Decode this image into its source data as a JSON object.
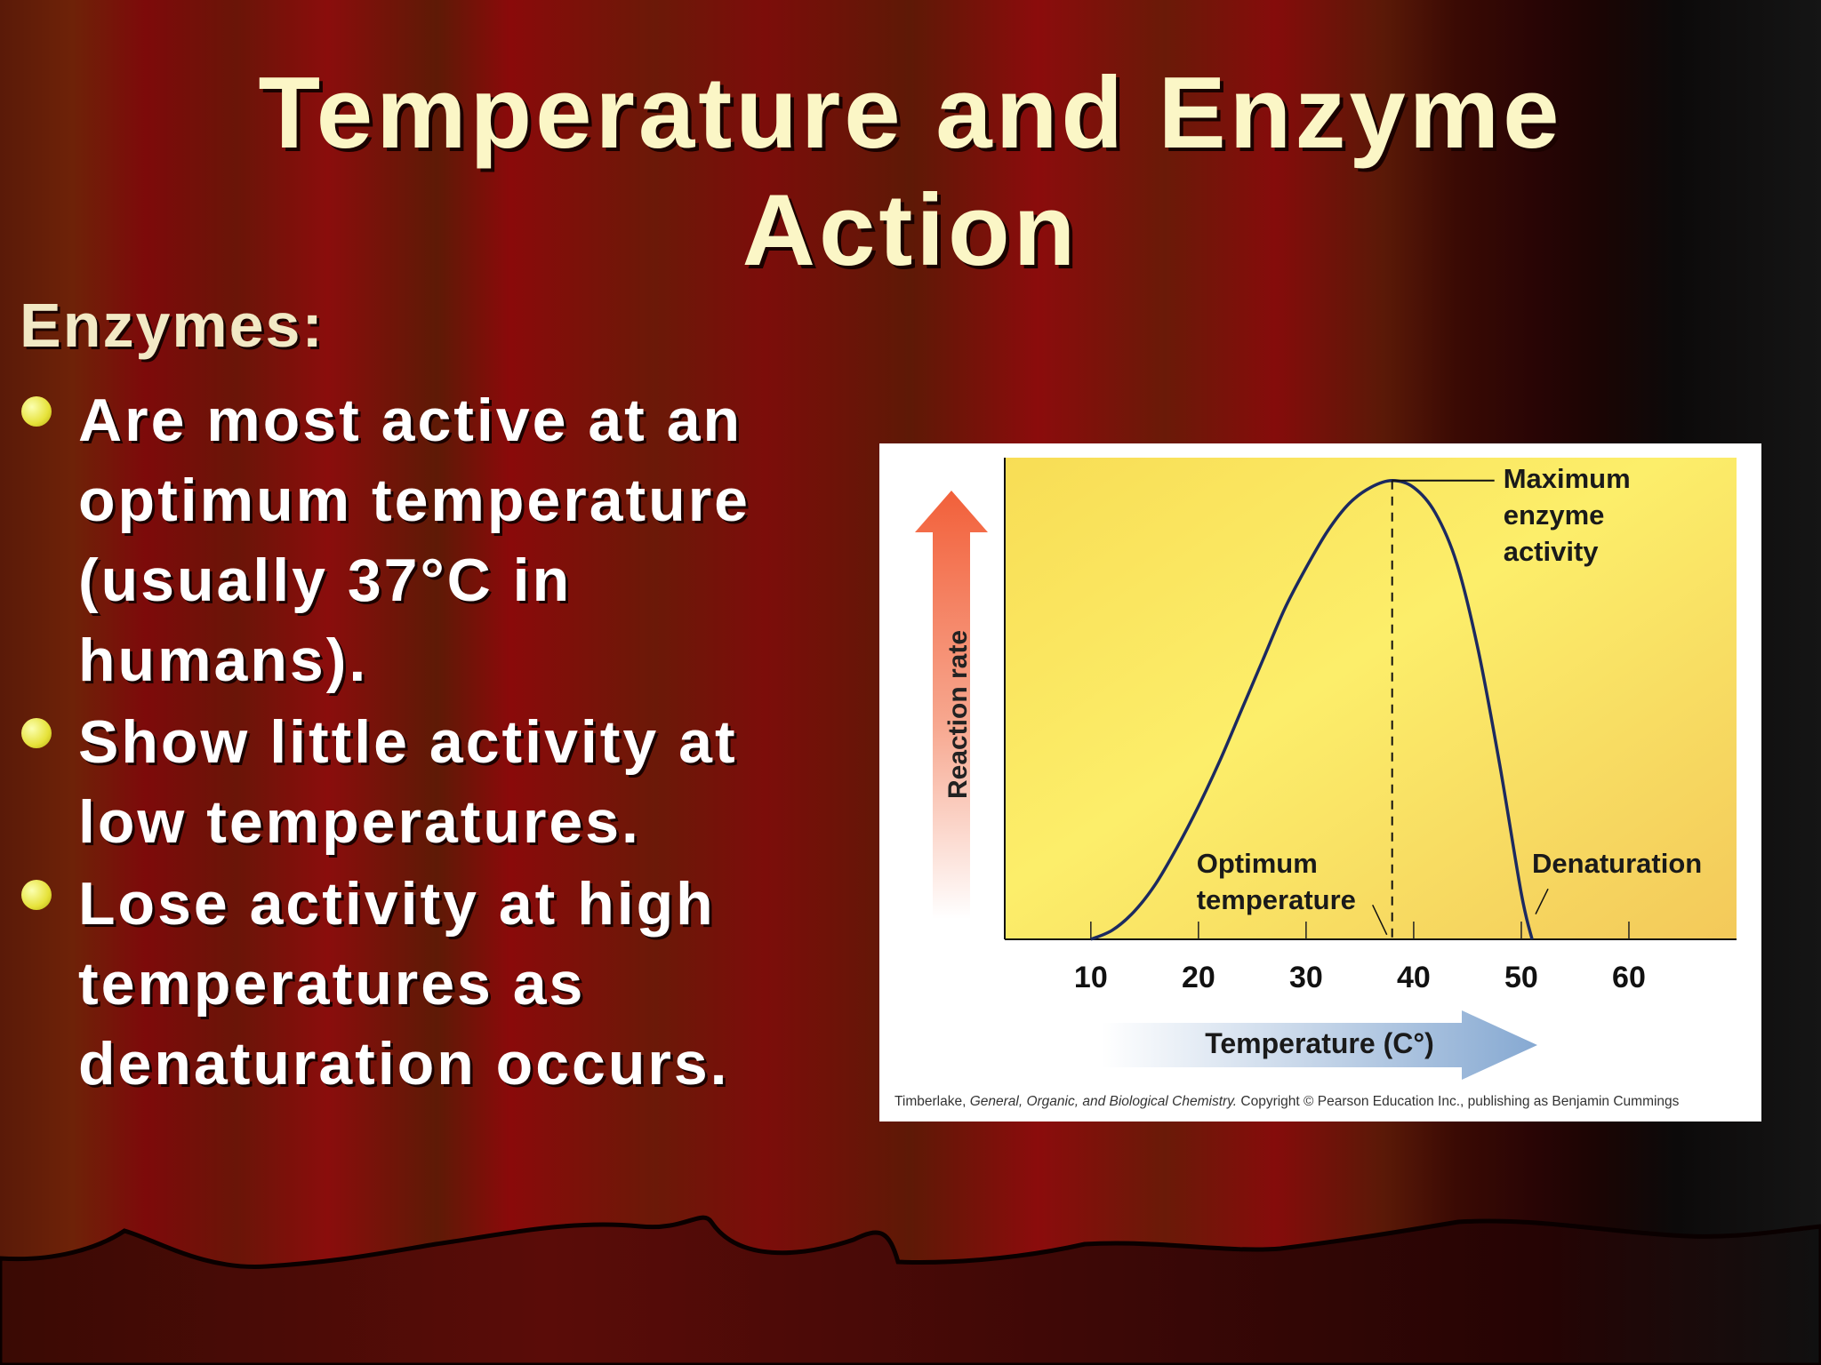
{
  "slide": {
    "title_line1": "Temperature and Enzyme",
    "title_line2": "Action",
    "heading": "Enzymes:",
    "bullets": [
      {
        "text": "Are most active at an optimum temperature (usually  37°C in humans)."
      },
      {
        "text": "Show little activity at low temperatures."
      },
      {
        "text": "Lose activity at high temperatures as denaturation occurs."
      }
    ]
  },
  "colors": {
    "title": "#fbf6c6",
    "bullet_dot": "#e6e23a",
    "curve": "#1c2a60",
    "plot_bg": "#fbe96a"
  },
  "chart_data": {
    "type": "line",
    "xlabel": "Temperature (C°)",
    "ylabel": "Reaction rate",
    "xlim": [
      2,
      70
    ],
    "ylim": [
      0,
      1.05
    ],
    "x_ticks": [
      10,
      20,
      30,
      40,
      50,
      60
    ],
    "tick_labels": [
      "10",
      "20",
      "30",
      "40",
      "50",
      "60"
    ],
    "y_ticks_shown": false,
    "series": [
      {
        "x": [
          10,
          12,
          14,
          16,
          18,
          20,
          22,
          24,
          26,
          28,
          30,
          32,
          34,
          36,
          38,
          40,
          42,
          44,
          46,
          48,
          50,
          51
        ],
        "y": [
          0,
          0.02,
          0.06,
          0.12,
          0.2,
          0.29,
          0.39,
          0.5,
          0.61,
          0.72,
          0.81,
          0.89,
          0.95,
          0.985,
          1.0,
          0.985,
          0.93,
          0.82,
          0.63,
          0.38,
          0.1,
          0
        ]
      }
    ],
    "annotations": {
      "maximum": "Maximum enzyme activity",
      "maximum_lines": [
        "Maximum",
        "enzyme",
        "activity"
      ],
      "optimum": "Optimum temperature",
      "optimum_lines": [
        "Optimum",
        "temperature"
      ],
      "denaturation": "Denaturation"
    },
    "optimum_x": 38,
    "credit": "Timberlake, General, Organic, and Biological Chemistry.  Copyright © Pearson Education Inc., publishing as Benjamin Cummings"
  }
}
